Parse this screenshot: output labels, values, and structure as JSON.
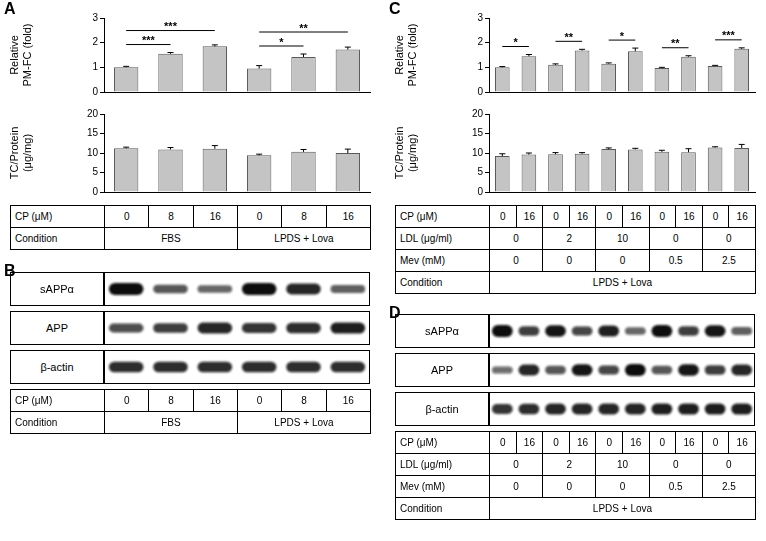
{
  "chart_data": [
    {
      "type": "bar",
      "title": "A",
      "y_label": [
        "Relative",
        "PM-FC (fold)"
      ],
      "categories": [
        null,
        null,
        null,
        null,
        null,
        null
      ],
      "values": [
        1.0,
        1.55,
        1.85,
        0.95,
        1.42,
        1.72
      ],
      "errors": [
        0.04,
        0.05,
        0.06,
        0.12,
        0.12,
        0.1
      ],
      "annotations": [
        {
          "from": 0,
          "to": 1,
          "label": "***"
        },
        {
          "from": 0,
          "to": 2,
          "label": "***"
        },
        {
          "from": 3,
          "to": 4,
          "label": "*"
        },
        {
          "from": 3,
          "to": 5,
          "label": "**"
        }
      ],
      "color": "#c4c4c4",
      "ylim": [
        0,
        3
      ],
      "yticks": [
        0,
        1,
        2,
        3
      ],
      "grid": false,
      "tick_labels": "y"
    },
    {
      "type": "bar",
      "y_label": [
        "TC/Protein",
        "(μg/mg)"
      ],
      "categories": [
        null,
        null,
        null,
        null,
        null,
        null
      ],
      "values": [
        11.2,
        10.9,
        11.1,
        9.4,
        10.3,
        10.0
      ],
      "errors": [
        0.3,
        0.5,
        0.8,
        0.3,
        0.6,
        1.0
      ],
      "color": "#c4c4c4",
      "ylim": [
        0,
        20
      ],
      "yticks": [
        0,
        5,
        10,
        15,
        20
      ],
      "grid": false,
      "tick_labels": "y"
    },
    {
      "type": "bar",
      "title": "C",
      "y_label": [
        "Relative",
        "PM-FC (fold)"
      ],
      "categories": [
        null,
        null,
        null,
        null,
        null,
        null,
        null,
        null,
        null,
        null
      ],
      "values": [
        1.0,
        1.45,
        1.1,
        1.68,
        1.15,
        1.65,
        0.97,
        1.43,
        1.05,
        1.75
      ],
      "errors": [
        0.03,
        0.07,
        0.04,
        0.05,
        0.03,
        0.13,
        0.03,
        0.04,
        0.03,
        0.04
      ],
      "annotations": [
        {
          "from": 0,
          "to": 1,
          "label": "*"
        },
        {
          "from": 2,
          "to": 3,
          "label": "**"
        },
        {
          "from": 4,
          "to": 5,
          "label": "*"
        },
        {
          "from": 6,
          "to": 7,
          "label": "**"
        },
        {
          "from": 8,
          "to": 9,
          "label": "***"
        }
      ],
      "color": "#c4c4c4",
      "ylim": [
        0,
        3
      ],
      "yticks": [
        0,
        1,
        2,
        3
      ],
      "grid": false,
      "tick_labels": "y"
    },
    {
      "type": "bar",
      "y_label": [
        "TC/Protein",
        "(μg/mg)"
      ],
      "categories": [
        null,
        null,
        null,
        null,
        null,
        null,
        null,
        null,
        null,
        null
      ],
      "values": [
        9.2,
        9.6,
        9.7,
        9.8,
        11.0,
        10.9,
        10.3,
        10.2,
        11.4,
        11.3
      ],
      "errors": [
        0.6,
        0.4,
        0.4,
        0.3,
        0.3,
        0.3,
        0.4,
        0.9,
        0.2,
        0.9
      ],
      "color": "#c4c4c4",
      "ylim": [
        0,
        20
      ],
      "yticks": [
        0,
        5,
        10,
        15,
        20
      ],
      "grid": false,
      "tick_labels": "y"
    }
  ],
  "condition_tables": [
    {
      "rows": [
        {
          "label": "CP (μM)",
          "cells": [
            "0",
            "8",
            "16",
            "0",
            "8",
            "16"
          ]
        },
        {
          "label": "Condition",
          "cells": [
            {
              "text": "FBS",
              "span": 3
            },
            {
              "text": "LPDS + Lova",
              "span": 3
            }
          ]
        }
      ]
    },
    {
      "rows": [
        {
          "label": "CP (μM)",
          "cells": [
            "0",
            "16",
            "0",
            "16",
            "0",
            "16",
            "0",
            "16",
            "0",
            "16"
          ]
        },
        {
          "label": "LDL (μg/ml)",
          "cells": [
            {
              "text": "0",
              "span": 2
            },
            {
              "text": "2",
              "span": 2
            },
            {
              "text": "10",
              "span": 2
            },
            {
              "text": "0",
              "span": 2
            },
            {
              "text": "0",
              "span": 2
            }
          ]
        },
        {
          "label": "Mev (mM)",
          "cells": [
            {
              "text": "0",
              "span": 2
            },
            {
              "text": "0",
              "span": 2
            },
            {
              "text": "0",
              "span": 2
            },
            {
              "text": "0.5",
              "span": 2
            },
            {
              "text": "2.5",
              "span": 2
            }
          ]
        },
        {
          "label": "Condition",
          "cells": [
            {
              "text": "LPDS + Lova",
              "span": 10
            }
          ]
        }
      ]
    }
  ],
  "blots": [
    {
      "title": "B",
      "rows": [
        {
          "label": "sAPPα",
          "intensity": [
            1.0,
            0.55,
            0.45,
            1.0,
            0.85,
            0.5
          ]
        },
        {
          "label": "APP",
          "intensity": [
            0.6,
            0.7,
            0.85,
            0.75,
            0.8,
            0.9
          ]
        },
        {
          "label": "β-actin",
          "intensity": [
            0.8,
            0.8,
            0.8,
            0.8,
            0.8,
            0.8
          ]
        }
      ],
      "table": {
        "rows": [
          {
            "label": "CP (μM)",
            "cells": [
              "0",
              "8",
              "16",
              "0",
              "8",
              "16"
            ]
          },
          {
            "label": "Condition",
            "cells": [
              {
                "text": "FBS",
                "span": 3
              },
              {
                "text": "LPDS + Lova",
                "span": 3
              }
            ]
          }
        ]
      }
    },
    {
      "title": "D",
      "rows": [
        {
          "label": "sAPPα",
          "intensity": [
            1.0,
            0.7,
            0.95,
            0.65,
            0.9,
            0.45,
            1.0,
            0.7,
            0.95,
            0.5
          ]
        },
        {
          "label": "APP",
          "intensity": [
            0.4,
            0.85,
            0.55,
            0.95,
            0.65,
            1.0,
            0.55,
            0.95,
            0.7,
            0.85
          ]
        },
        {
          "label": "β-actin",
          "intensity": [
            0.75,
            0.8,
            0.85,
            0.85,
            0.85,
            0.85,
            0.9,
            0.9,
            0.9,
            0.9
          ]
        }
      ],
      "table": {
        "rows": [
          {
            "label": "CP (μM)",
            "cells": [
              "0",
              "16",
              "0",
              "16",
              "0",
              "16",
              "0",
              "16",
              "0",
              "16"
            ]
          },
          {
            "label": "LDL (μg/ml)",
            "cells": [
              {
                "text": "0",
                "span": 2
              },
              {
                "text": "2",
                "span": 2
              },
              {
                "text": "10",
                "span": 2
              },
              {
                "text": "0",
                "span": 2
              },
              {
                "text": "0",
                "span": 2
              }
            ]
          },
          {
            "label": "Mev (mM)",
            "cells": [
              {
                "text": "0",
                "span": 2
              },
              {
                "text": "0",
                "span": 2
              },
              {
                "text": "0",
                "span": 2
              },
              {
                "text": "0.5",
                "span": 2
              },
              {
                "text": "2.5",
                "span": 2
              }
            ]
          },
          {
            "label": "Condition",
            "cells": [
              {
                "text": "LPDS + Lova",
                "span": 10
              }
            ]
          }
        ]
      }
    }
  ]
}
